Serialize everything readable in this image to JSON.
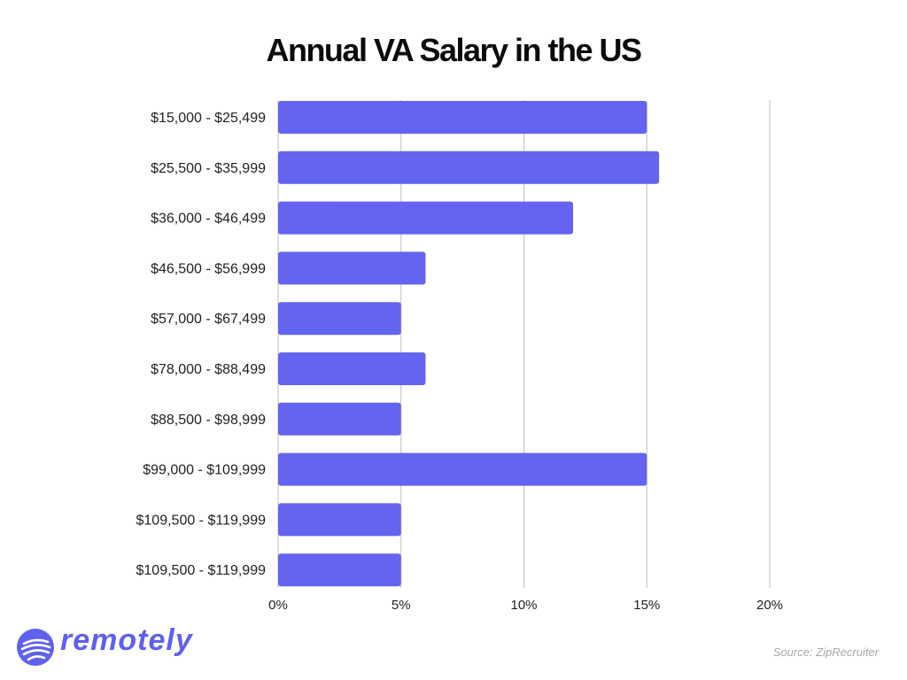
{
  "title": "Annual VA Salary in the US",
  "source": "Source: ZipRecruiter",
  "brand": {
    "name": "remotely",
    "color": "#6060ee",
    "icon": "globe-icon"
  },
  "chart_data": {
    "type": "bar",
    "orientation": "horizontal",
    "title": "Annual VA Salary in the US",
    "categories": [
      "$15,000 - $25,499",
      "$25,500 - $35,999",
      "$36,000 - $46,499",
      "$46,500 - $56,999",
      "$57,000 - $67,499",
      "$78,000 - $88,499",
      "$88,500 - $98,999",
      "$99,000 - $109,999",
      "$109,500 - $119,999",
      "$109,500 - $119,999"
    ],
    "values": [
      15,
      15.5,
      12,
      6,
      5,
      6,
      5,
      15,
      5,
      5
    ],
    "xlim": [
      0,
      20
    ],
    "xticks": [
      0,
      5,
      10,
      15,
      20
    ],
    "xtick_labels": [
      "0%",
      "5%",
      "10%",
      "15%",
      "20%"
    ],
    "bar_color": "#6464f0",
    "grid": "vertical",
    "grid_color": "#c8c8c8"
  }
}
